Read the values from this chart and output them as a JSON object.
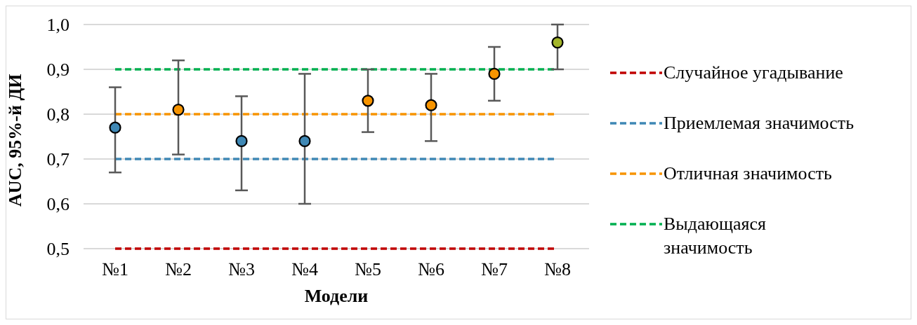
{
  "chart_data": {
    "type": "scatter",
    "xlabel": "Модели",
    "ylabel": "AUC, 95%-й ДИ",
    "categories": [
      "№1",
      "№2",
      "№3",
      "№4",
      "№5",
      "№6",
      "№7",
      "№8"
    ],
    "values": [
      0.77,
      0.81,
      0.74,
      0.74,
      0.83,
      0.82,
      0.89,
      0.96
    ],
    "colors": [
      "#3f88b5",
      "#f79400",
      "#3f88b5",
      "#3f88b5",
      "#f79400",
      "#f79400",
      "#f79400",
      "#a3b52a"
    ],
    "errors": [
      [
        0.67,
        0.86
      ],
      [
        0.71,
        0.92
      ],
      [
        0.63,
        0.84
      ],
      [
        0.6,
        0.89
      ],
      [
        0.76,
        0.9
      ],
      [
        0.74,
        0.89
      ],
      [
        0.83,
        0.95
      ],
      [
        0.9,
        1.0
      ]
    ],
    "ylim": [
      0.5,
      1.0
    ],
    "yticks": [
      {
        "value": 0.5,
        "label": "0,5"
      },
      {
        "value": 0.6,
        "label": "0,6"
      },
      {
        "value": 0.7,
        "label": "0,7"
      },
      {
        "value": 0.8,
        "label": "0,8"
      },
      {
        "value": 0.9,
        "label": "0,9"
      },
      {
        "value": 1.0,
        "label": "1,0"
      }
    ],
    "ref_lines": [
      {
        "axis": "y",
        "value": 0.5,
        "label": "Случайное угадывание",
        "color": "#c00000",
        "line_style": "dashed"
      },
      {
        "axis": "y",
        "value": 0.7,
        "label": "Приемлемая значимость",
        "color": "#3f88b5",
        "line_style": "dashed"
      },
      {
        "axis": "y",
        "value": 0.8,
        "label": "Отличная значимость",
        "color": "#f79400",
        "line_style": "dashed"
      },
      {
        "axis": "y",
        "value": 0.9,
        "label": "Выдающаяся значимость",
        "color": "#00b050",
        "line_style": "dashed"
      }
    ],
    "grid": "y",
    "legend": "right",
    "marker": "circle"
  }
}
